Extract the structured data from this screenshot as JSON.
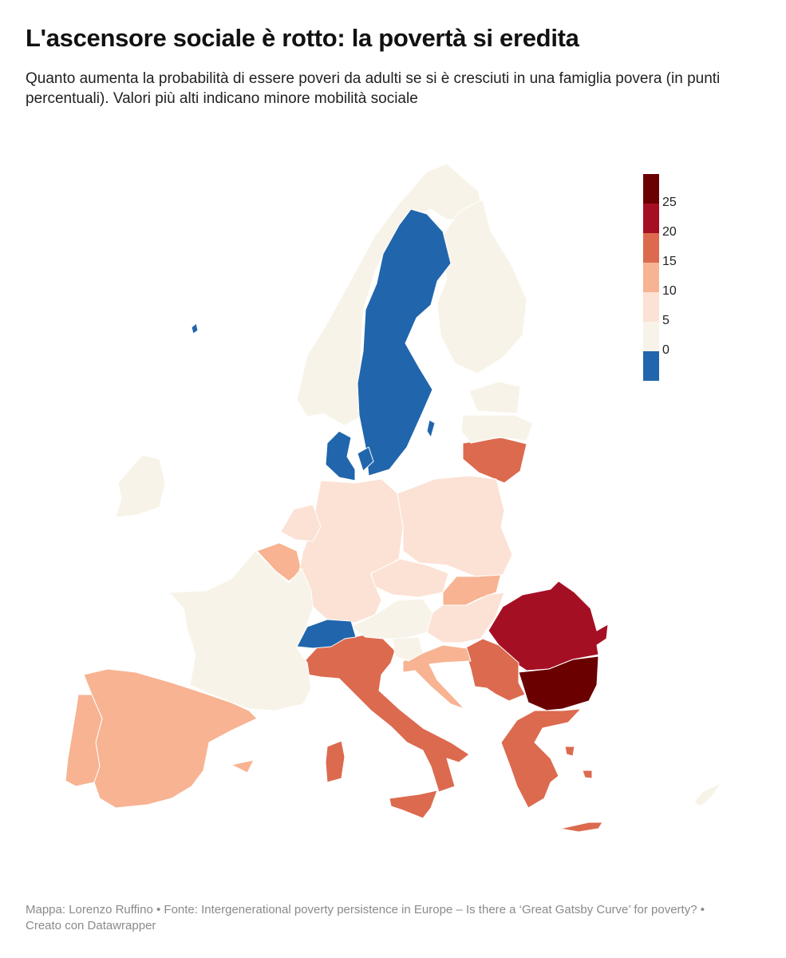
{
  "title": "L'ascensore sociale è rotto: la povertà si eredita",
  "subtitle": "Quanto aumenta la probabilità di essere poveri da adulti se si è cresciuti in una famiglia povera (in punti percentuali). Valori più alti indicano minore mobilità sociale",
  "legend": {
    "ticks": [
      "25",
      "20",
      "15",
      "10",
      "5",
      "0"
    ],
    "bins": [
      {
        "label": "25+",
        "color": "#6b0000"
      },
      {
        "label": "20-25",
        "color": "#a50f24"
      },
      {
        "label": "15-20",
        "color": "#dc6a4f"
      },
      {
        "label": "10-15",
        "color": "#f7b392"
      },
      {
        "label": "5-10",
        "color": "#fbe2d4"
      },
      {
        "label": "0-5",
        "color": "#f8f3e8"
      },
      {
        "label": "<0",
        "color": "#2166ac"
      }
    ]
  },
  "map_data": {
    "regions": [
      {
        "name": "Romania",
        "bin": "20-25"
      },
      {
        "name": "Bulgaria",
        "bin": "25+"
      },
      {
        "name": "Italy",
        "bin": "15-20"
      },
      {
        "name": "Greece",
        "bin": "15-20"
      },
      {
        "name": "Serbia",
        "bin": "15-20"
      },
      {
        "name": "Lithuania",
        "bin": "15-20"
      },
      {
        "name": "Spain",
        "bin": "10-15"
      },
      {
        "name": "Portugal",
        "bin": "10-15"
      },
      {
        "name": "Belgium",
        "bin": "10-15"
      },
      {
        "name": "Slovakia",
        "bin": "10-15"
      },
      {
        "name": "Croatia",
        "bin": "10-15"
      },
      {
        "name": "Germany",
        "bin": "5-10"
      },
      {
        "name": "Poland",
        "bin": "5-10"
      },
      {
        "name": "Czechia",
        "bin": "5-10"
      },
      {
        "name": "Netherlands",
        "bin": "5-10"
      },
      {
        "name": "Hungary",
        "bin": "5-10"
      },
      {
        "name": "France",
        "bin": "0-5"
      },
      {
        "name": "Ireland",
        "bin": "0-5"
      },
      {
        "name": "Norway",
        "bin": "0-5"
      },
      {
        "name": "Finland",
        "bin": "0-5"
      },
      {
        "name": "Estonia",
        "bin": "0-5"
      },
      {
        "name": "Latvia",
        "bin": "0-5"
      },
      {
        "name": "Austria",
        "bin": "0-5"
      },
      {
        "name": "Slovenia",
        "bin": "0-5"
      },
      {
        "name": "Cyprus",
        "bin": "0-5"
      },
      {
        "name": "Sweden",
        "bin": "<0"
      },
      {
        "name": "Denmark",
        "bin": "<0"
      },
      {
        "name": "Switzerland",
        "bin": "<0"
      },
      {
        "name": "Iceland",
        "bin": "<0"
      }
    ]
  },
  "footer": "Mappa: Lorenzo Ruffino • Fonte: Intergenerational poverty persistence in Europe – Is there a ‘Great Gatsby Curve’ for poverty? • Creato con Datawrapper"
}
